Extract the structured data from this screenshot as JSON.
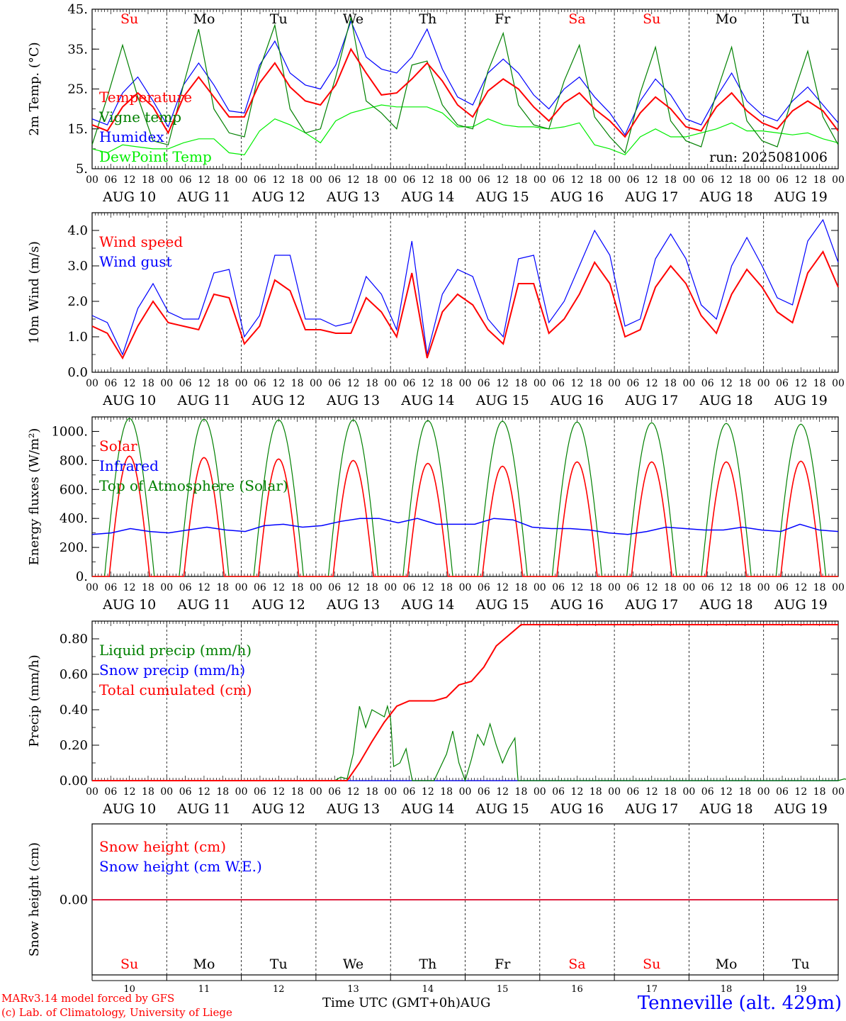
{
  "run_label": "run: 2025081006",
  "days": [
    "Su",
    "Mo",
    "Tu",
    "We",
    "Th",
    "Fr",
    "Sa",
    "Su",
    "Mo",
    "Tu"
  ],
  "weekend_indices": [
    0,
    6,
    7
  ],
  "hour_ticks": [
    "00",
    "06",
    "12",
    "18"
  ],
  "end_hour_tick": "00",
  "date_labels": [
    "AUG 10",
    "AUG 11",
    "AUG 12",
    "AUG 13",
    "AUG 14",
    "AUG 15",
    "AUG 16",
    "AUG 17",
    "AUG 18",
    "AUG 19"
  ],
  "bottom_day_numbers": [
    "10",
    "11",
    "12",
    "13",
    "14",
    "15",
    "16",
    "17",
    "18",
    "19"
  ],
  "xlabel": "Time UTC (GMT+0h)",
  "xlabel_month": "AUG",
  "model_line": "MARv3.14 model forced by GFS",
  "copyright_line": "(c) Lab. of Climatology, University of Liege",
  "station": "Tenneville (alt. 429m)",
  "colors": {
    "red": "#ff0000",
    "green": "#008000",
    "blue": "#0000ff",
    "lightgreen": "#00ee00",
    "station": "#0000ff"
  },
  "chart_data": [
    {
      "type": "line",
      "ylabel": "2m Temp. (°C)",
      "ylim": [
        5,
        45
      ],
      "yticks": [
        "5.",
        "15.",
        "25.",
        "35.",
        "45."
      ],
      "legend": [
        {
          "label": "Temperature",
          "color": "red"
        },
        {
          "label": "Vigne temp",
          "color": "green"
        },
        {
          "label": "Humidex",
          "color": "blue"
        },
        {
          "label": "DewPoint Temp",
          "color": "lightgreen"
        }
      ],
      "series": [
        {
          "name": "Temperature",
          "color": "red",
          "values": [
            16.0,
            14.5,
            20.5,
            24.0,
            20.5,
            14.0,
            23.0,
            28.0,
            23.0,
            18.0,
            18.0,
            26.5,
            31.5,
            25.5,
            22.0,
            21.0,
            26.0,
            35.0,
            29.0,
            23.5,
            24.0,
            27.5,
            31.5,
            27.0,
            21.0,
            18.0,
            24.5,
            27.5,
            25.0,
            20.5,
            17.0,
            21.5,
            24.0,
            20.0,
            17.0,
            13.0,
            19.0,
            23.0,
            20.0,
            15.5,
            14.5,
            20.5,
            24.0,
            19.5,
            16.5,
            15.0,
            19.5,
            22.0,
            19.5,
            14.5
          ]
        },
        {
          "name": "Vigne temp",
          "color": "green",
          "values": [
            11.0,
            23.0,
            36.0,
            23.0,
            12.0,
            11.0,
            26.0,
            40.0,
            20.0,
            14.0,
            13.0,
            30.0,
            41.0,
            20.0,
            14.0,
            15.0,
            28.0,
            43.0,
            22.0,
            19.0,
            15.0,
            31.0,
            32.0,
            21.0,
            16.0,
            15.0,
            29.5,
            39.0,
            21.0,
            16.0,
            15.0,
            27.0,
            36.0,
            18.0,
            13.0,
            9.0,
            24.0,
            35.5,
            17.0,
            12.0,
            10.5,
            24.0,
            35.5,
            17.0,
            12.0,
            10.5,
            23.0,
            34.5,
            18.0,
            11.0
          ]
        },
        {
          "name": "Humidex",
          "color": "blue",
          "values": [
            17.5,
            16.0,
            24.0,
            28.0,
            22.0,
            15.5,
            26.0,
            31.5,
            26.0,
            19.5,
            19.0,
            31.0,
            37.0,
            29.0,
            26.0,
            25.0,
            31.0,
            42.0,
            33.0,
            30.0,
            29.0,
            33.0,
            40.0,
            30.0,
            23.0,
            21.0,
            29.0,
            32.5,
            29.0,
            23.5,
            20.0,
            25.0,
            28.0,
            23.0,
            19.0,
            13.5,
            22.0,
            27.5,
            23.5,
            17.5,
            16.0,
            23.0,
            29.0,
            22.0,
            18.5,
            17.0,
            22.0,
            25.5,
            21.0,
            16.5
          ]
        },
        {
          "name": "DewPoint Temp",
          "color": "lightgreen",
          "values": [
            10.0,
            9.0,
            11.0,
            10.5,
            10.0,
            10.0,
            11.5,
            12.5,
            12.5,
            9.0,
            8.5,
            14.5,
            17.5,
            16.0,
            14.0,
            11.5,
            17.0,
            19.0,
            20.0,
            21.0,
            20.5,
            20.5,
            20.5,
            19.0,
            15.5,
            15.5,
            17.5,
            16.0,
            15.5,
            15.5,
            15.0,
            15.5,
            16.5,
            11.0,
            10.0,
            8.5,
            13.0,
            15.0,
            13.0,
            13.0,
            14.0,
            15.0,
            16.5,
            14.5,
            14.5,
            14.0,
            13.5,
            14.0,
            12.5,
            11.5
          ]
        }
      ]
    },
    {
      "type": "line",
      "ylabel": "10m Wind (m/s)",
      "ylim": [
        0,
        4.5
      ],
      "yticks": [
        "0.0",
        "1.0",
        "2.0",
        "3.0",
        "4.0"
      ],
      "legend": [
        {
          "label": "Wind speed",
          "color": "red"
        },
        {
          "label": "Wind gust",
          "color": "blue"
        }
      ],
      "series": [
        {
          "name": "Wind speed",
          "color": "red",
          "values": [
            1.3,
            1.1,
            0.4,
            1.3,
            2.0,
            1.4,
            1.3,
            1.2,
            2.2,
            2.1,
            0.8,
            1.3,
            2.6,
            2.3,
            1.2,
            1.2,
            1.1,
            1.1,
            2.1,
            1.7,
            1.0,
            2.8,
            0.4,
            1.7,
            2.2,
            1.9,
            1.2,
            0.8,
            2.5,
            2.5,
            1.1,
            1.5,
            2.2,
            3.1,
            2.5,
            1.0,
            1.2,
            2.4,
            3.0,
            2.5,
            1.6,
            1.1,
            2.2,
            2.9,
            2.4,
            1.7,
            1.4,
            2.8,
            3.4,
            2.4
          ]
        },
        {
          "name": "Wind gust",
          "color": "blue",
          "values": [
            1.6,
            1.4,
            0.5,
            1.8,
            2.5,
            1.7,
            1.5,
            1.5,
            2.8,
            2.9,
            1.0,
            1.6,
            3.3,
            3.3,
            1.5,
            1.5,
            1.3,
            1.4,
            2.7,
            2.2,
            1.2,
            3.7,
            0.5,
            2.2,
            2.9,
            2.7,
            1.5,
            1.0,
            3.2,
            3.3,
            1.4,
            2.0,
            3.0,
            4.0,
            3.3,
            1.3,
            1.5,
            3.2,
            3.9,
            3.2,
            1.9,
            1.5,
            3.0,
            3.8,
            3.0,
            2.1,
            1.9,
            3.7,
            4.3,
            3.1
          ]
        }
      ]
    },
    {
      "type": "line",
      "ylabel": "Energy fluxes (W/m²)",
      "ylim": [
        0,
        1100
      ],
      "yticks": [
        "0.",
        "200.",
        "400.",
        "600.",
        "800.",
        "1000."
      ],
      "legend": [
        {
          "label": "Solar",
          "color": "red"
        },
        {
          "label": "Infrared",
          "color": "blue"
        },
        {
          "label": "Top of Atmosphere (Solar)",
          "color": "green"
        }
      ],
      "series": [
        {
          "name": "Solar",
          "color": "red",
          "peaks": [
            830,
            820,
            810,
            800,
            780,
            760,
            790,
            790,
            790,
            795
          ],
          "note": "daily bell 05h-19h"
        },
        {
          "name": "Infrared",
          "color": "blue",
          "values": [
            290,
            300,
            330,
            310,
            300,
            320,
            340,
            320,
            310,
            350,
            360,
            340,
            350,
            380,
            400,
            400,
            370,
            400,
            360,
            360,
            360,
            400,
            390,
            340,
            330,
            330,
            320,
            300,
            290,
            310,
            340,
            330,
            320,
            320,
            340,
            320,
            310,
            360,
            320,
            310
          ]
        },
        {
          "name": "Top of Atmosphere (Solar)",
          "color": "green",
          "peaks": [
            1090,
            1085,
            1080,
            1080,
            1075,
            1070,
            1065,
            1060,
            1055,
            1050
          ],
          "note": "daily bell 04h-20h"
        }
      ]
    },
    {
      "type": "line",
      "ylabel": "Precip (mm/h)",
      "ylim": [
        0,
        0.9
      ],
      "yticks": [
        "0.00",
        "0.20",
        "0.40",
        "0.60",
        "0.80"
      ],
      "legend": [
        {
          "label": "Liquid precip (mm/h)",
          "color": "green"
        },
        {
          "label": "Snow precip (mm/h)",
          "color": "blue"
        },
        {
          "label": "Total cumulated (cm)",
          "color": "red"
        }
      ],
      "series": [
        {
          "name": "Liquid precip (mm/h)",
          "color": "green",
          "points": [
            [
              0,
              0
            ],
            [
              78,
              0
            ],
            [
              80,
              0.02
            ],
            [
              82,
              0.01
            ],
            [
              84,
              0.15
            ],
            [
              86,
              0.42
            ],
            [
              88,
              0.3
            ],
            [
              90,
              0.4
            ],
            [
              92,
              0.38
            ],
            [
              94,
              0.36
            ],
            [
              95,
              0.42
            ],
            [
              96,
              0.35
            ],
            [
              97,
              0.08
            ],
            [
              99,
              0.1
            ],
            [
              101,
              0.18
            ],
            [
              103,
              0
            ],
            [
              110,
              0
            ],
            [
              114,
              0.15
            ],
            [
              116,
              0.28
            ],
            [
              118,
              0.1
            ],
            [
              120,
              0
            ],
            [
              122,
              0.12
            ],
            [
              124,
              0.26
            ],
            [
              126,
              0.2
            ],
            [
              128,
              0.32
            ],
            [
              130,
              0.2
            ],
            [
              132,
              0.1
            ],
            [
              134,
              0.18
            ],
            [
              136,
              0.24
            ],
            [
              137,
              0
            ],
            [
              240,
              0
            ],
            [
              242,
              0.01
            ],
            [
              244,
              0
            ]
          ]
        },
        {
          "name": "Snow precip (mm/h)",
          "color": "blue",
          "points": [
            [
              0,
              0
            ],
            [
              240,
              0
            ]
          ]
        },
        {
          "name": "Total cumulated (cm)",
          "color": "red",
          "points": [
            [
              0,
              0
            ],
            [
              82,
              0
            ],
            [
              86,
              0.1
            ],
            [
              90,
              0.22
            ],
            [
              94,
              0.33
            ],
            [
              98,
              0.42
            ],
            [
              102,
              0.45
            ],
            [
              110,
              0.45
            ],
            [
              114,
              0.47
            ],
            [
              118,
              0.54
            ],
            [
              122,
              0.56
            ],
            [
              126,
              0.64
            ],
            [
              130,
              0.76
            ],
            [
              134,
              0.82
            ],
            [
              138,
              0.88
            ],
            [
              240,
              0.88
            ]
          ]
        }
      ]
    },
    {
      "type": "line",
      "ylabel": "Snow height (cm)",
      "yticks": [
        "0.00"
      ],
      "legend": [
        {
          "label": "Snow height (cm)",
          "color": "red"
        },
        {
          "label": "Snow height (cm W.E.)",
          "color": "blue"
        }
      ],
      "series": [
        {
          "name": "Snow height (cm)",
          "color": "red",
          "values": [
            0,
            0
          ]
        },
        {
          "name": "Snow height (cm W.E.)",
          "color": "blue",
          "values": [
            0,
            0
          ]
        }
      ]
    }
  ]
}
